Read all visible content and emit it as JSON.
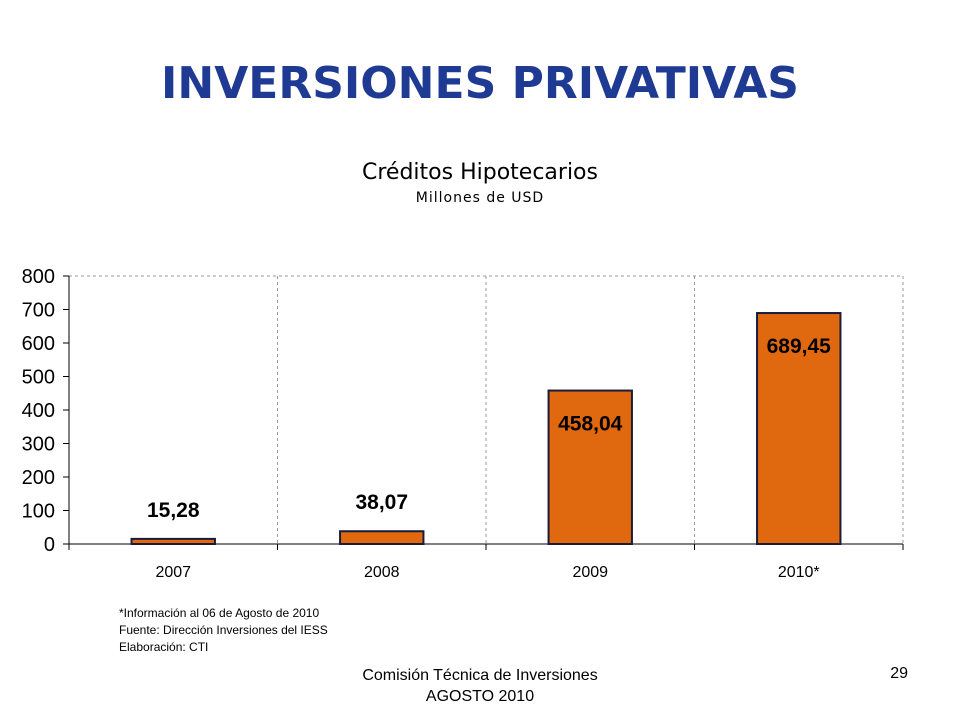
{
  "slide": {
    "title": "INVERSIONES PRIVATIVAS",
    "title_color": "#1f3a93",
    "notes": [
      "*Información al 06 de Agosto de 2010",
      "Fuente: Dirección Inversiones del IESS",
      "Elaboración: CTI"
    ],
    "footer": [
      "Comisión Técnica de Inversiones",
      "AGOSTO 2010"
    ],
    "page_number": "29"
  },
  "chart_data": {
    "type": "bar",
    "title": "Créditos Hipotecarios",
    "subtitle": "Millones de USD",
    "categories": [
      "2007",
      "2008",
      "2009",
      "2010*"
    ],
    "values": [
      15.28,
      38.07,
      458.04,
      689.45
    ],
    "data_labels": [
      "15,28",
      "38,07",
      "458,04",
      "689,45"
    ],
    "ylim": [
      0,
      800
    ],
    "yticks": [
      "0",
      "100",
      "200",
      "300",
      "400",
      "500",
      "600",
      "700",
      "800"
    ],
    "grid": "vertical dashed",
    "bar_color": "#e0690f",
    "bar_edge_color": "#1a1a3a",
    "legend": "none"
  }
}
